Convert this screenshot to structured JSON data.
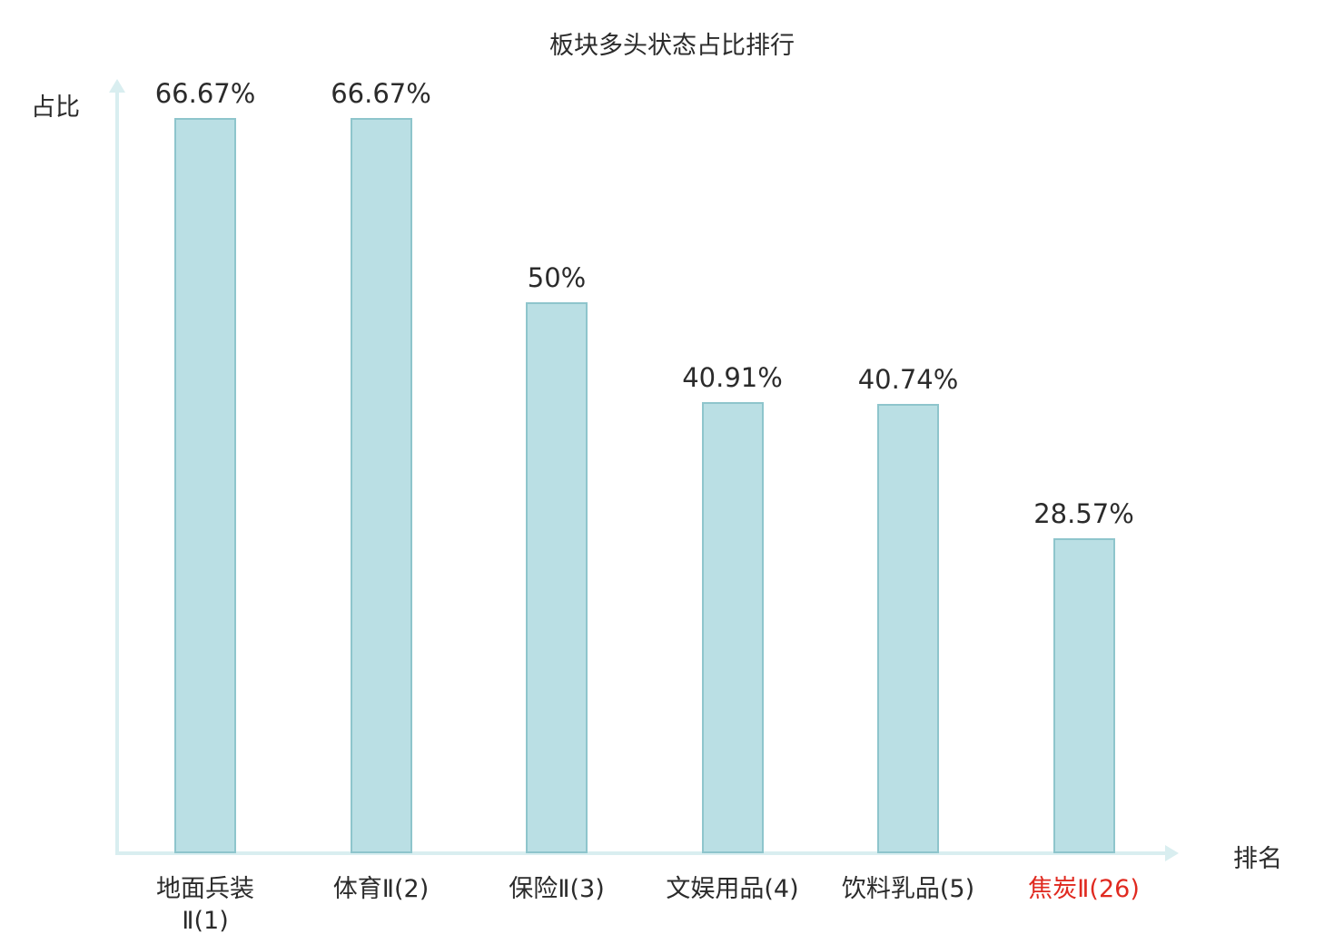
{
  "chart_data": {
    "type": "bar",
    "title": "板块多头状态占比排行",
    "ylabel": "占比",
    "xlabel": "排名",
    "categories": [
      "地面兵装\nⅡ(1)",
      "体育Ⅱ(2)",
      "保险Ⅱ(3)",
      "文娱用品(4)",
      "饮料乳品(5)",
      "焦炭Ⅱ(26)"
    ],
    "values": [
      66.67,
      66.67,
      50,
      40.91,
      40.74,
      28.57
    ],
    "value_labels": [
      "66.67%",
      "66.67%",
      "50%",
      "40.91%",
      "40.74%",
      "28.57%"
    ],
    "ylim": [
      0,
      70
    ],
    "grid": false,
    "legend": "none",
    "highlight_index": 5,
    "colors": {
      "bar_fill": "#badfe4",
      "bar_border": "#8ec5cc",
      "axis": "#d9eef0",
      "label_text": "#2b2b2b",
      "highlight_text": "#e02a20"
    }
  }
}
